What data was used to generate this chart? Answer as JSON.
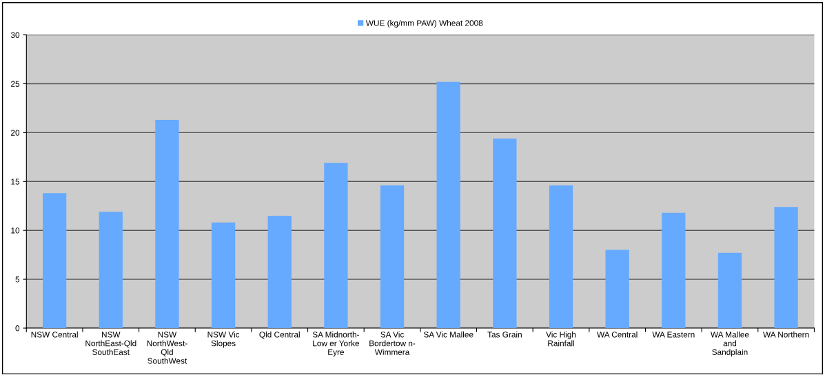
{
  "chart_data": {
    "type": "bar",
    "categories": [
      "NSW Central",
      "NSW\nNorthEast-Qld\nSouthEast",
      "NSW\nNorthWest-\nQld\nSouthWest",
      "NSW Vic\nSlopes",
      "Qld Central",
      "SA Midnorth-\nLow er Yorke\nEyre",
      "SA Vic\nBordertow n-\nWimmera",
      "SA Vic Mallee",
      "Tas Grain",
      "Vic High\nRainfall",
      "WA Central",
      "WA Eastern",
      "WA Mallee\nand\nSandplain",
      "WA Northern"
    ],
    "series": [
      {
        "name": "WUE (kg/mm PAW) Wheat 2008",
        "color": "#66aaff",
        "values": [
          13.8,
          11.9,
          21.3,
          10.8,
          11.5,
          16.9,
          14.6,
          25.2,
          19.4,
          14.6,
          8.0,
          11.8,
          7.7,
          12.4
        ]
      }
    ],
    "ylim": [
      0,
      30
    ],
    "yticks": [
      0,
      5,
      10,
      15,
      20,
      25,
      30
    ],
    "grid": "y",
    "legend": "top"
  }
}
